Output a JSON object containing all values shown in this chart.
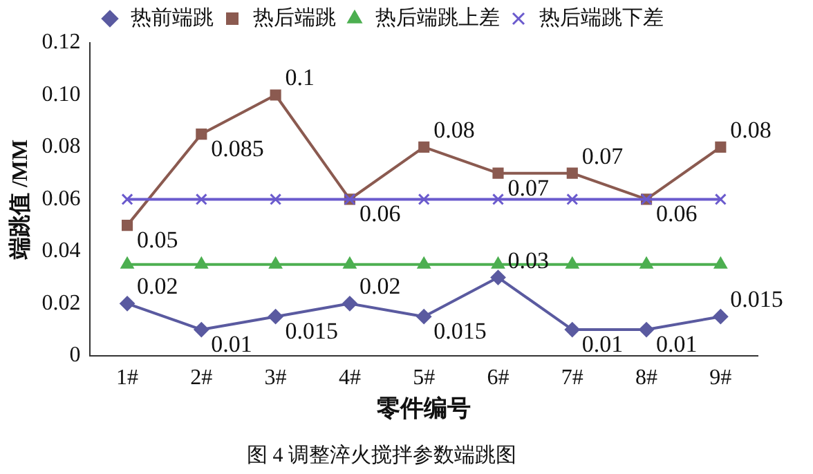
{
  "chart_data": {
    "type": "line",
    "title": "图 4 调整淬火搅拌参数端跳图",
    "xlabel": "零件编号",
    "ylabel": "端跳值 /MM",
    "categories": [
      "1#",
      "2#",
      "3#",
      "4#",
      "5#",
      "6#",
      "7#",
      "8#",
      "9#"
    ],
    "series": [
      {
        "name": "热前端跳",
        "color": "#5a5aa0",
        "marker": "diamond",
        "values": [
          0.02,
          0.01,
          0.015,
          0.02,
          0.015,
          0.03,
          0.01,
          0.01,
          0.015
        ],
        "value_labels": [
          "0.02",
          "0.01",
          "0.015",
          "0.02",
          "0.015",
          "0.03",
          "0.01",
          "0.01",
          "0.015"
        ]
      },
      {
        "name": "热后端跳",
        "color": "#8b5a50",
        "marker": "square",
        "values": [
          0.05,
          0.085,
          0.1,
          0.06,
          0.08,
          0.07,
          0.07,
          0.06,
          0.08
        ],
        "value_labels": [
          "0.05",
          "0.085",
          "0.1",
          "0.06",
          "0.08",
          "0.07",
          "0.07",
          "0.06",
          "0.08"
        ]
      },
      {
        "name": "热后端跳上差",
        "color": "#4caf50",
        "marker": "triangle",
        "values": [
          0.035,
          0.035,
          0.035,
          0.035,
          0.035,
          0.035,
          0.035,
          0.035,
          0.035
        ]
      },
      {
        "name": "热后端跳下差",
        "color": "#6a5acd",
        "marker": "cross",
        "values": [
          0.06,
          0.06,
          0.06,
          0.06,
          0.06,
          0.06,
          0.06,
          0.06,
          0.06
        ]
      }
    ],
    "ylim": [
      0,
      0.12
    ],
    "yticks": [
      0,
      0.02,
      0.04,
      0.06,
      0.08,
      {
        "value": 0.1,
        "label": "0.10"
      },
      0.12
    ],
    "grid": false,
    "legend": "top"
  }
}
